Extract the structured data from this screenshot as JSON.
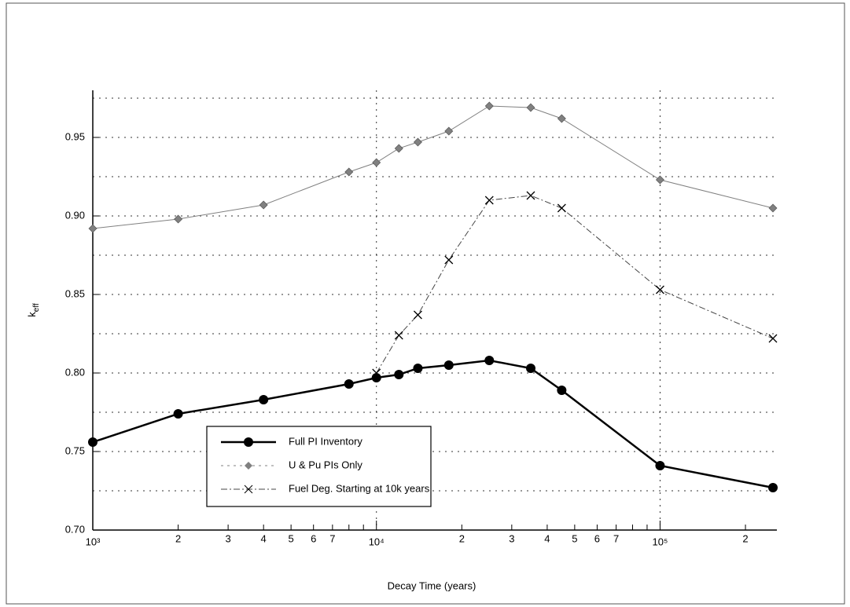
{
  "chart_data": {
    "type": "line",
    "xlabel": "Decay Time (years)",
    "ylabel": "k",
    "ylabel_sub": "eff",
    "xscale": "log",
    "xlim": [
      1000,
      250000
    ],
    "ylim": [
      0.7,
      0.98
    ],
    "xticks": [
      {
        "value": 1000,
        "label": "10³"
      },
      {
        "value": 2000,
        "label": "2"
      },
      {
        "value": 3000,
        "label": "3"
      },
      {
        "value": 4000,
        "label": "4"
      },
      {
        "value": 5000,
        "label": "5"
      },
      {
        "value": 6000,
        "label": "6"
      },
      {
        "value": 7000,
        "label": "7"
      },
      {
        "value": 10000,
        "label": "10⁴"
      },
      {
        "value": 20000,
        "label": "2"
      },
      {
        "value": 30000,
        "label": "3"
      },
      {
        "value": 40000,
        "label": "4"
      },
      {
        "value": 50000,
        "label": "5"
      },
      {
        "value": 60000,
        "label": "6"
      },
      {
        "value": 70000,
        "label": "7"
      },
      {
        "value": 100000,
        "label": "10⁵"
      },
      {
        "value": 200000,
        "label": "2"
      }
    ],
    "xminor_ticks": [
      8000,
      9000,
      80000,
      90000
    ],
    "xgrid": [
      1000,
      10000,
      100000
    ],
    "yticks": [
      {
        "value": 0.7,
        "label": "0.70"
      },
      {
        "value": 0.75,
        "label": "0.75"
      },
      {
        "value": 0.8,
        "label": "0.80"
      },
      {
        "value": 0.85,
        "label": "0.85"
      },
      {
        "value": 0.9,
        "label": "0.90"
      },
      {
        "value": 0.95,
        "label": "0.95"
      }
    ],
    "yminor_grid": [
      0.725,
      0.775,
      0.825,
      0.875,
      0.925,
      0.975
    ],
    "grid": true,
    "legend": "lower center",
    "series": [
      {
        "name": "Full PI Inventory",
        "color": "#000000",
        "marker": "circle",
        "dash": "none",
        "width": 2.5,
        "x": [
          1000,
          2000,
          4000,
          8000,
          10000,
          12000,
          14000,
          18000,
          25000,
          35000,
          45000,
          100000,
          250000
        ],
        "values": [
          0.756,
          0.774,
          0.783,
          0.793,
          0.797,
          0.799,
          0.803,
          0.805,
          0.808,
          0.803,
          0.789,
          0.741,
          0.727
        ]
      },
      {
        "name": "U & Pu PIs Only",
        "color": "#808080",
        "marker": "diamond",
        "dash": "none",
        "width": 1,
        "x": [
          1000,
          2000,
          4000,
          8000,
          10000,
          12000,
          14000,
          18000,
          25000,
          35000,
          45000,
          100000,
          250000
        ],
        "values": [
          0.892,
          0.898,
          0.907,
          0.928,
          0.934,
          0.943,
          0.947,
          0.954,
          0.97,
          0.969,
          0.962,
          0.923,
          0.905
        ]
      },
      {
        "name": "Fuel Deg. Starting at 10k years",
        "color": "#444444",
        "marker": "x",
        "dash": "8 3 2 3",
        "width": 1,
        "x": [
          10000,
          12000,
          14000,
          18000,
          25000,
          35000,
          45000,
          100000,
          250000
        ],
        "values": [
          0.8,
          0.824,
          0.837,
          0.872,
          0.91,
          0.913,
          0.905,
          0.853,
          0.822
        ]
      }
    ]
  }
}
